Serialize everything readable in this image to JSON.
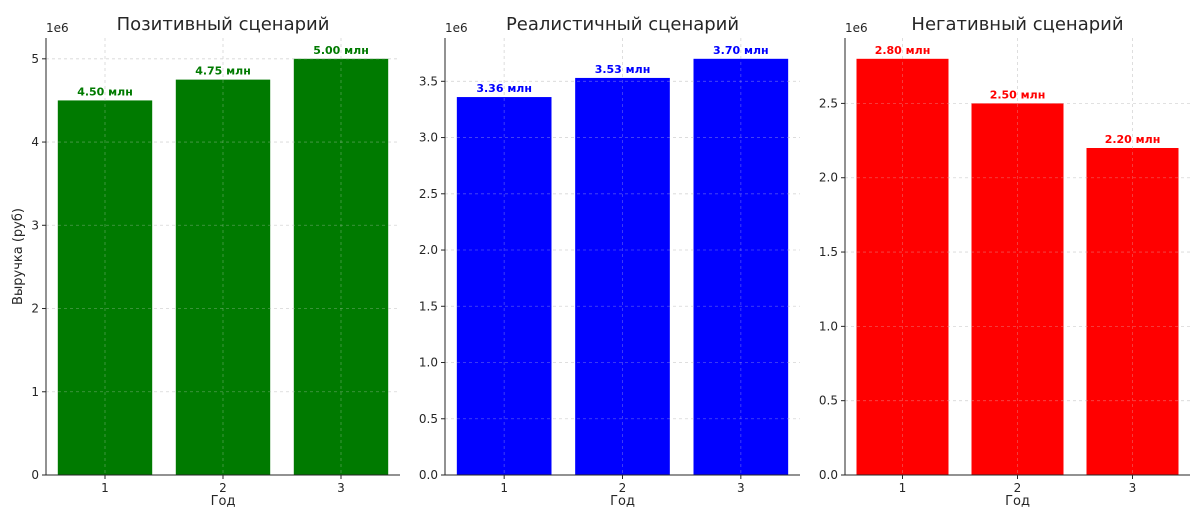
{
  "chart_data": [
    {
      "type": "bar",
      "title": "Позитивный сценарий",
      "categories": [
        "1",
        "2",
        "3"
      ],
      "values": [
        4500000,
        4750000,
        5000000
      ],
      "value_labels": [
        "4.50 млн",
        "4.75 млн",
        "5.00 млн"
      ],
      "color": "#007a00",
      "xlabel": "Год",
      "ylabel": "Выручка (руб)",
      "ylim": [
        0,
        5250000
      ],
      "yticks": [
        0,
        1000000,
        2000000,
        3000000,
        4000000,
        5000000
      ],
      "ytick_labels": [
        "0",
        "1",
        "2",
        "3",
        "4",
        "5"
      ],
      "offset_text": "1e6",
      "grid": true
    },
    {
      "type": "bar",
      "title": "Реалистичный сценарий",
      "categories": [
        "1",
        "2",
        "3"
      ],
      "values": [
        3360000,
        3530000,
        3700000
      ],
      "value_labels": [
        "3.36 млн",
        "3.53 млн",
        "3.70 млн"
      ],
      "color": "#0000ff",
      "xlabel": "Год",
      "ylabel": "",
      "ylim": [
        0,
        3885000
      ],
      "yticks": [
        0,
        500000,
        1000000,
        1500000,
        2000000,
        2500000,
        3000000,
        3500000
      ],
      "ytick_labels": [
        "0.0",
        "0.5",
        "1.0",
        "1.5",
        "2.0",
        "2.5",
        "3.0",
        "3.5"
      ],
      "offset_text": "1e6",
      "grid": true
    },
    {
      "type": "bar",
      "title": "Негативный сценарий",
      "categories": [
        "1",
        "2",
        "3"
      ],
      "values": [
        2800000,
        2500000,
        2200000
      ],
      "value_labels": [
        "2.80 млн",
        "2.50 млн",
        "2.20 млн"
      ],
      "color": "#ff0000",
      "xlabel": "Год",
      "ylabel": "",
      "ylim": [
        0,
        2940000
      ],
      "yticks": [
        0,
        500000,
        1000000,
        1500000,
        2000000,
        2500000
      ],
      "ytick_labels": [
        "0.0",
        "0.5",
        "1.0",
        "1.5",
        "2.0",
        "2.5"
      ],
      "offset_text": "1e6",
      "grid": true
    }
  ]
}
